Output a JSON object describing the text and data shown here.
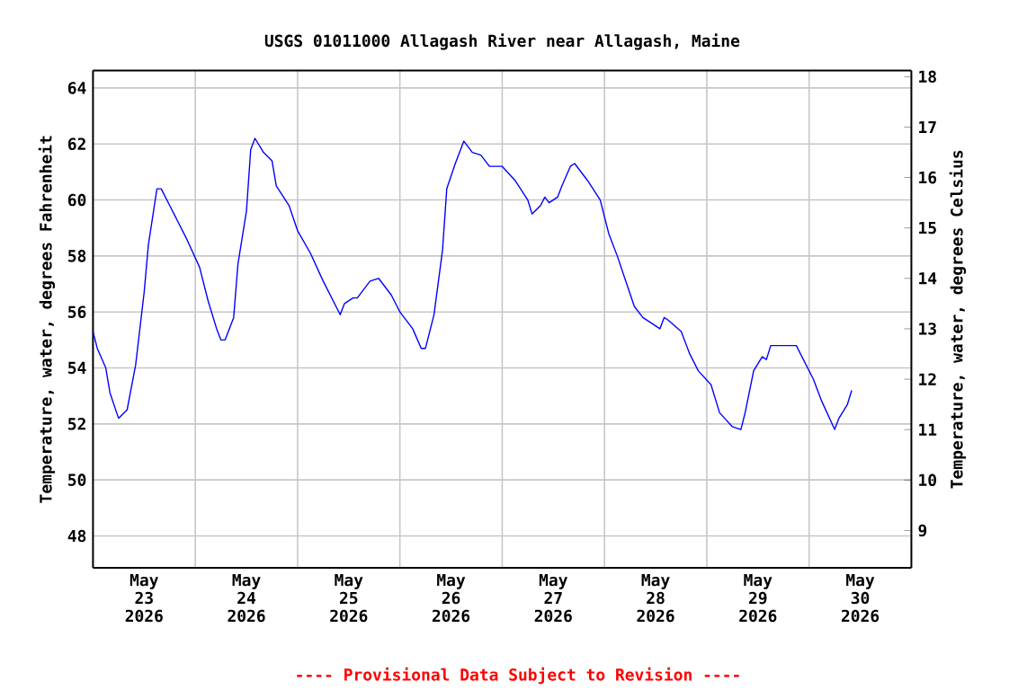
{
  "chart_data": {
    "type": "line",
    "title": "USGS 01011000 Allagash River near Allagash, Maine",
    "ylabel": "Temperature, water, degrees Fahrenheit",
    "y2label": "Temperature, water, degrees Celsius",
    "annotations": [
      "---- Provisional Data Subject to Revision ----"
    ],
    "xlim": [
      "2026-05-23",
      "2026-05-31"
    ],
    "xticks": [
      {
        "value": "2026-05-23T12:00",
        "label": "May 23 2026"
      },
      {
        "value": "2026-05-24T12:00",
        "label": "May 24 2026"
      },
      {
        "value": "2026-05-25T12:00",
        "label": "May 25 2026"
      },
      {
        "value": "2026-05-26T12:00",
        "label": "May 26 2026"
      },
      {
        "value": "2026-05-27T12:00",
        "label": "May 27 2026"
      },
      {
        "value": "2026-05-28T12:00",
        "label": "May 28 2026"
      },
      {
        "value": "2026-05-29T12:00",
        "label": "May 29 2026"
      },
      {
        "value": "2026-05-30T12:00",
        "label": "May 30 2026"
      },
      {
        "value": "2026-05-24",
        "label": null
      },
      {
        "value": "2026-05-25",
        "label": null
      },
      {
        "value": "2026-05-26",
        "label": null
      },
      {
        "value": "2026-05-27",
        "label": null
      },
      {
        "value": "2026-05-28",
        "label": null
      },
      {
        "value": "2026-05-29",
        "label": null
      },
      {
        "value": "2026-05-30",
        "label": null
      }
    ],
    "ylim": [
      46.86,
      64.62
    ],
    "yticks": [
      48,
      50,
      52,
      54,
      56,
      58,
      60,
      62,
      64
    ],
    "y2lim": [
      8.26,
      18.12
    ],
    "y2ticks": [
      9,
      10,
      11,
      12,
      13,
      14,
      15,
      16,
      17,
      18
    ],
    "grid": true,
    "marker": "none",
    "line_style": "solid",
    "series": [
      {
        "color": "#0000ff",
        "x": [
          "2026-05-23T00:00",
          "2026-05-23T01:00",
          "2026-05-23T03:00",
          "2026-05-23T04:00",
          "2026-05-23T06:00",
          "2026-05-23T08:00",
          "2026-05-23T10:00",
          "2026-05-23T12:00",
          "2026-05-23T13:00",
          "2026-05-23T15:00",
          "2026-05-23T16:00",
          "2026-05-23T18:00",
          "2026-05-23T19:00",
          "2026-05-23T20:00",
          "2026-05-23T22:00",
          "2026-05-24T01:00",
          "2026-05-24T03:00",
          "2026-05-24T05:00",
          "2026-05-24T06:00",
          "2026-05-24T07:00",
          "2026-05-24T09:00",
          "2026-05-24T10:00",
          "2026-05-24T12:00",
          "2026-05-24T13:00",
          "2026-05-24T14:00",
          "2026-05-24T16:00",
          "2026-05-24T18:00",
          "2026-05-24T19:00",
          "2026-05-24T22:00",
          "2026-05-25T00:00",
          "2026-05-25T03:00",
          "2026-05-25T06:00",
          "2026-05-25T08:00",
          "2026-05-25T10:00",
          "2026-05-25T11:00",
          "2026-05-25T13:00",
          "2026-05-25T14:00",
          "2026-05-25T17:00",
          "2026-05-25T19:00",
          "2026-05-25T20:00",
          "2026-05-25T22:00",
          "2026-05-26T00:00",
          "2026-05-26T03:00",
          "2026-05-26T05:00",
          "2026-05-26T06:00",
          "2026-05-26T08:00",
          "2026-05-26T10:00",
          "2026-05-26T11:00",
          "2026-05-26T13:00",
          "2026-05-26T15:00",
          "2026-05-26T17:00",
          "2026-05-26T19:00",
          "2026-05-26T21:00",
          "2026-05-27T00:00",
          "2026-05-27T03:00",
          "2026-05-27T06:00",
          "2026-05-27T07:00",
          "2026-05-27T09:00",
          "2026-05-27T10:00",
          "2026-05-27T11:00",
          "2026-05-27T13:00",
          "2026-05-27T14:00",
          "2026-05-27T16:00",
          "2026-05-27T17:00",
          "2026-05-27T18:00",
          "2026-05-27T20:00",
          "2026-05-27T23:00",
          "2026-05-28T01:00",
          "2026-05-28T03:00",
          "2026-05-28T05:00",
          "2026-05-28T07:00",
          "2026-05-28T09:00",
          "2026-05-28T11:00",
          "2026-05-28T13:00",
          "2026-05-28T14:00",
          "2026-05-28T15:00",
          "2026-05-28T18:00",
          "2026-05-28T20:00",
          "2026-05-28T22:00",
          "2026-05-29T01:00",
          "2026-05-29T03:00",
          "2026-05-29T06:00",
          "2026-05-29T08:00",
          "2026-05-29T09:00",
          "2026-05-29T11:00",
          "2026-05-29T13:00",
          "2026-05-29T14:00",
          "2026-05-29T15:00",
          "2026-05-29T21:00",
          "2026-05-29T23:00",
          "2026-05-30T01:00",
          "2026-05-30T03:00",
          "2026-05-30T06:00",
          "2026-05-30T07:00",
          "2026-05-30T09:00",
          "2026-05-30T10:00"
        ],
        "values": [
          55.3,
          54.7,
          54.0,
          53.1,
          52.2,
          52.5,
          54.1,
          56.7,
          58.4,
          60.4,
          60.4,
          59.8,
          59.5,
          59.2,
          58.6,
          57.6,
          56.4,
          55.4,
          55.0,
          55.0,
          55.8,
          57.7,
          59.6,
          61.8,
          62.2,
          61.7,
          61.4,
          60.5,
          59.8,
          58.9,
          58.1,
          57.1,
          56.5,
          55.9,
          56.3,
          56.5,
          56.5,
          57.1,
          57.2,
          57.0,
          56.6,
          56.0,
          55.4,
          54.7,
          54.7,
          55.9,
          58.2,
          60.4,
          61.3,
          62.1,
          61.7,
          61.6,
          61.2,
          61.2,
          60.7,
          60.0,
          59.5,
          59.8,
          60.1,
          59.9,
          60.1,
          60.5,
          61.2,
          61.3,
          61.1,
          60.7,
          60.0,
          58.8,
          58.0,
          57.1,
          56.2,
          55.8,
          55.6,
          55.4,
          55.8,
          55.7,
          55.3,
          54.5,
          53.9,
          53.4,
          52.4,
          51.9,
          51.8,
          52.4,
          53.9,
          54.4,
          54.3,
          54.8,
          54.8,
          54.2,
          53.6,
          52.8,
          51.8,
          52.2,
          52.7,
          53.2
        ]
      }
    ]
  }
}
